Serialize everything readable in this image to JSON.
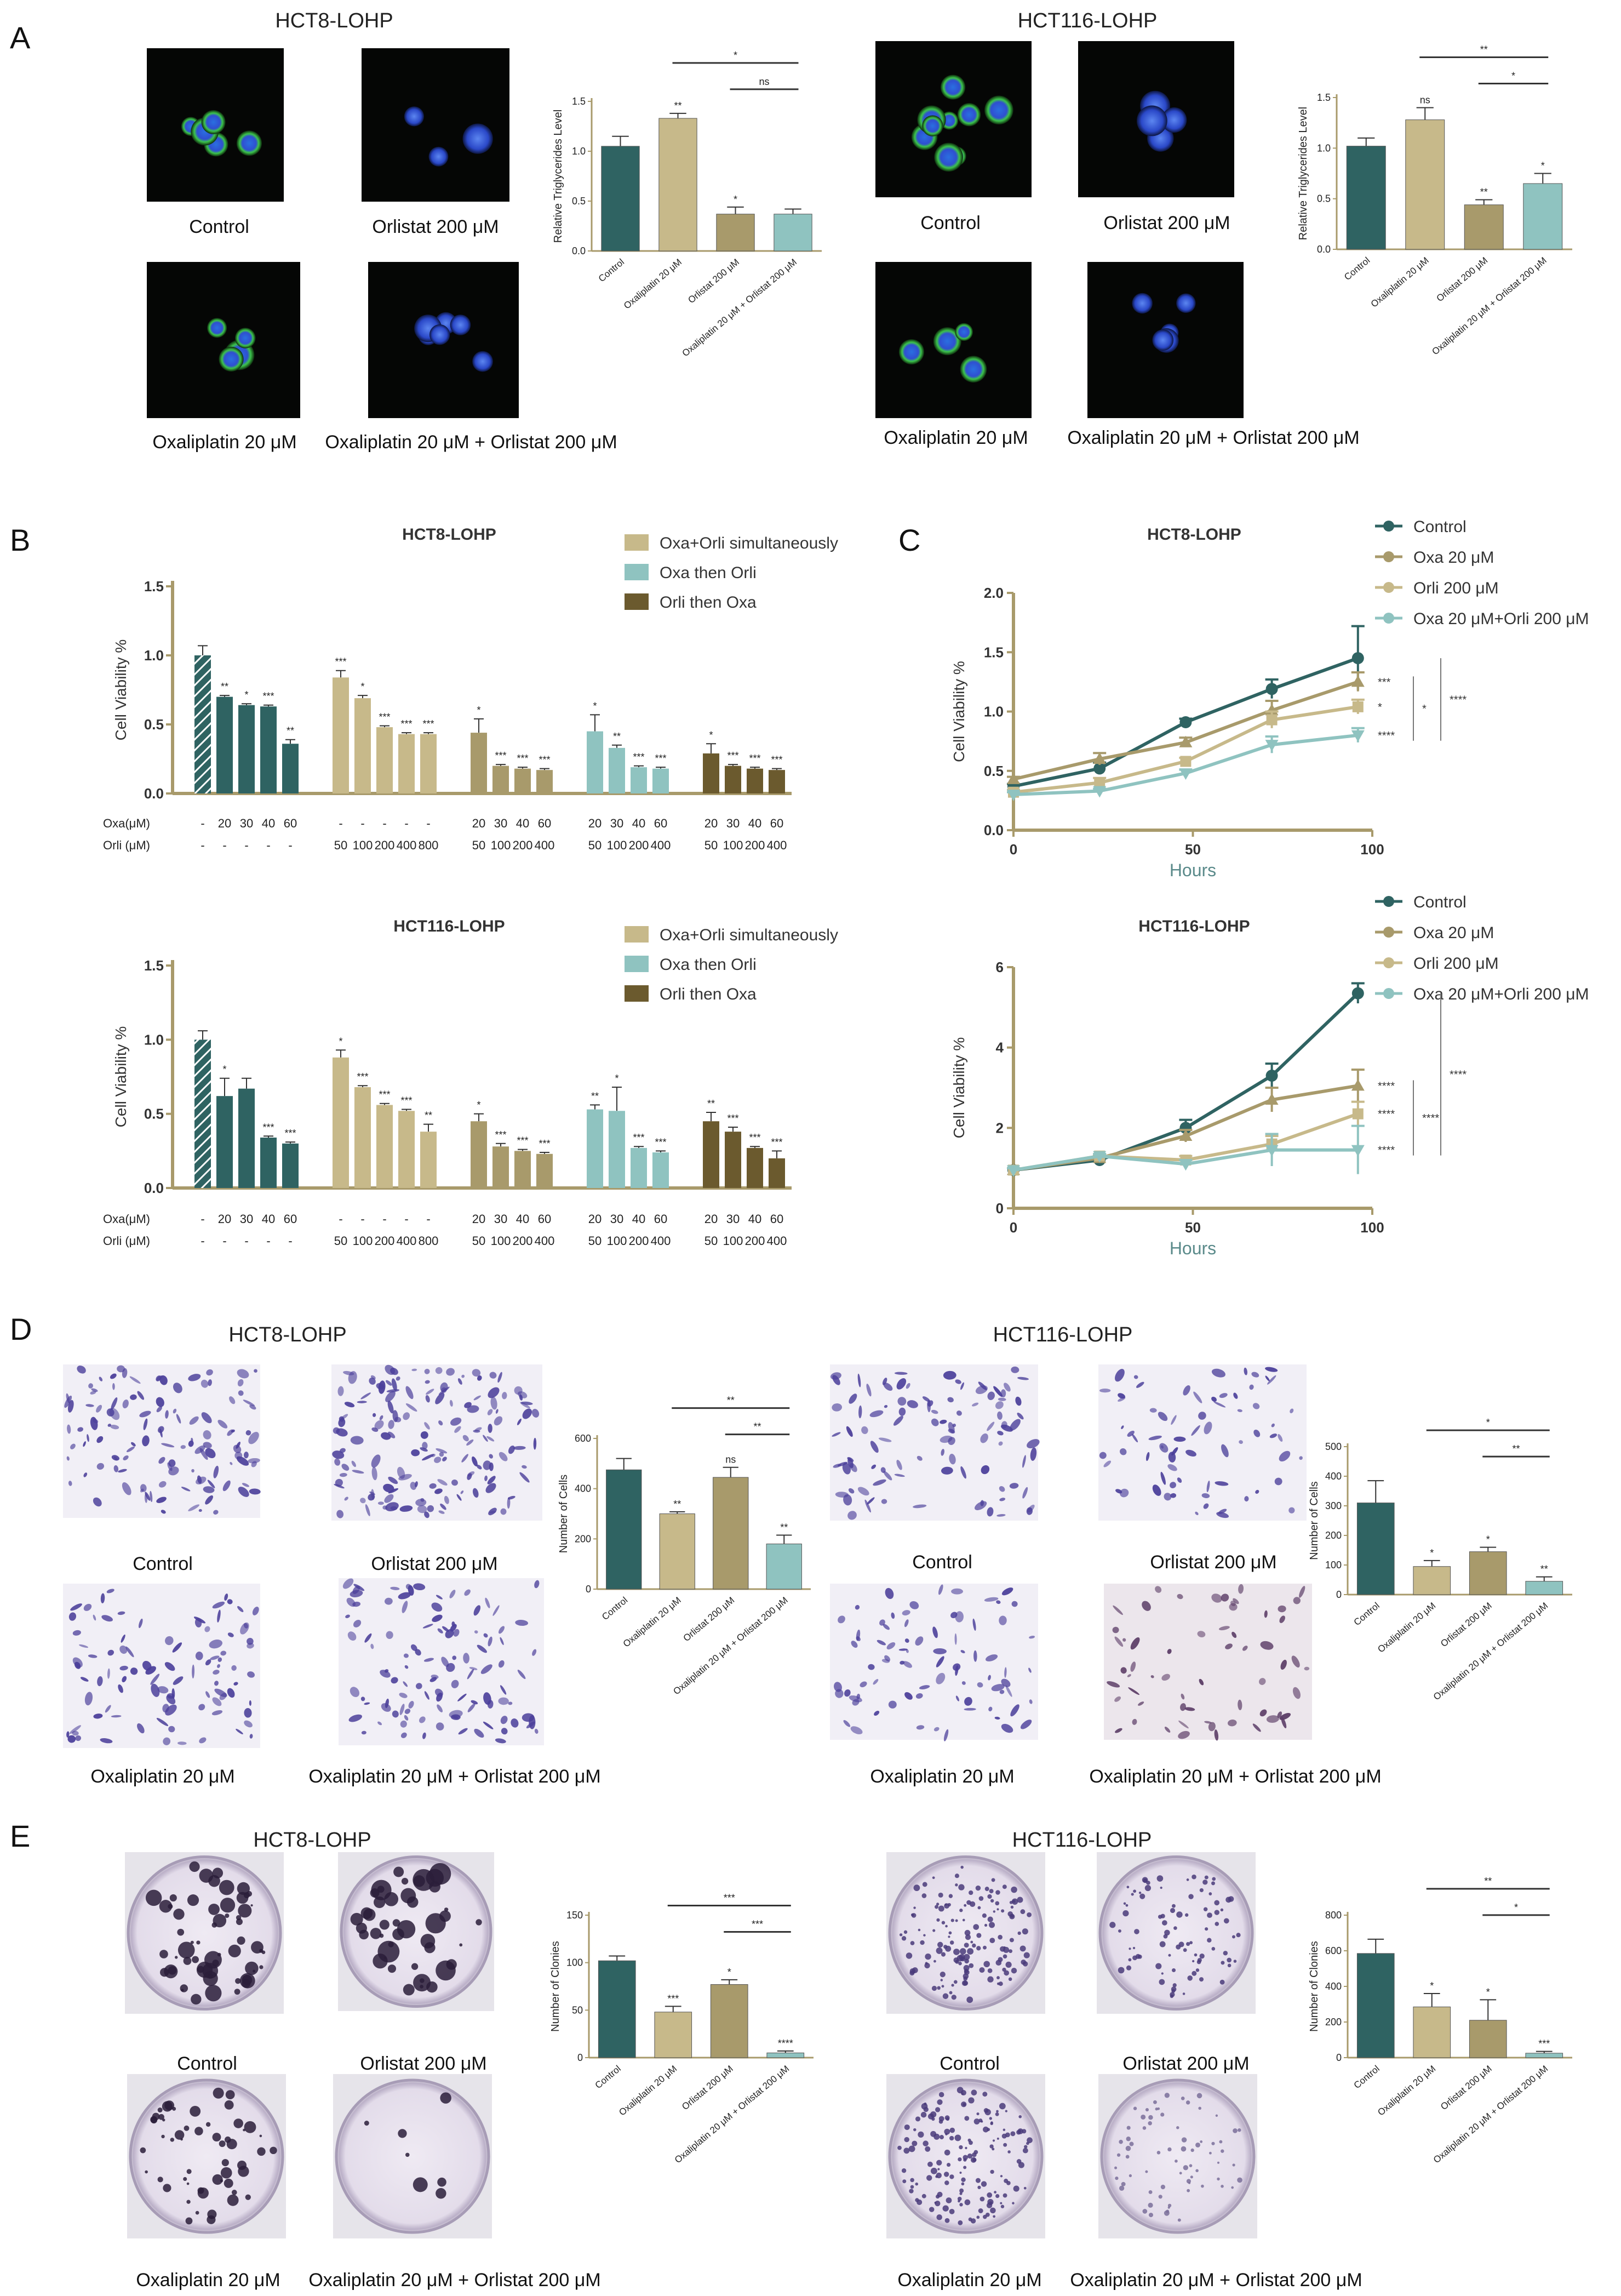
{
  "panels": {
    "A": {
      "label": "A",
      "left_title": "HCT8-LOHP",
      "right_title": "HCT116-LOHP",
      "captions_left": [
        "Control",
        "Orlistat 200 μM",
        "Oxaliplatin 20 μM",
        "Oxaliplatin 20 μM  + Orlistat 200 μM"
      ],
      "captions_right": [
        "Control",
        "Orlistat 200 μM",
        "Oxaliplatin 20 μM",
        "Oxaliplatin 20 μM  + Orlistat 200 μM"
      ]
    },
    "B": {
      "label": "B"
    },
    "C": {
      "label": "C",
      "xlabel": "Hours"
    },
    "D": {
      "label": "D",
      "left_title": "HCT8-LOHP",
      "right_title": "HCT116-LOHP",
      "captions_left": [
        "Control",
        "Orlistat 200 μM",
        "Oxaliplatin 20 μM",
        "Oxaliplatin 20 μM + Orlistat 200 μM"
      ],
      "captions_right": [
        "Control",
        "Orlistat 200 μM",
        "Oxaliplatin 20 μM",
        "Oxaliplatin 20 μM + Orlistat 200 μM"
      ]
    },
    "E": {
      "label": "E",
      "left_title": "HCT8-LOHP",
      "right_title": "HCT116-LOHP",
      "captions_left": [
        "Control",
        "Orlistat 200 μM",
        "Oxaliplatin 20 μM",
        "Oxaliplatin 20 μM + Orlistat 200 μM"
      ],
      "captions_right": [
        "Control",
        "Orlistat 200 μM",
        "Oxaliplatin 20 μM",
        "Oxaliplatin 20 μM + Orlistat 200 μM"
      ]
    }
  },
  "colors": {
    "teal_dark": "#2f6362",
    "khaki_light": "#c7b98a",
    "khaki": "#a89a6b",
    "teal_light": "#8fc3c0",
    "olive_dark": "#6b5a2e",
    "axis": "#a89a6b"
  },
  "bar4_categories": [
    "Control",
    "Oxaliplatin 20 μM",
    "Orlistat 200 μM",
    "Oxaliplatin 20 μM + Orlistat 200 μM"
  ],
  "chart_data": [
    {
      "id": "A_left",
      "type": "bar",
      "ylabel": "Relative Triglycerides Level",
      "ylim": [
        0,
        1.5
      ],
      "yticks": [
        "0.0",
        "0.5",
        "1.0",
        "1.5"
      ],
      "values": [
        1.05,
        1.33,
        0.37,
        0.37
      ],
      "errors": [
        0.1,
        0.05,
        0.07,
        0.05
      ],
      "sig": [
        "",
        "**",
        "*",
        ""
      ],
      "brackets": [
        {
          "from": 1,
          "to": 3,
          "text": "*"
        },
        {
          "from": 2,
          "to": 3,
          "text": "ns"
        }
      ]
    },
    {
      "id": "A_right",
      "type": "bar",
      "ylabel": "Relative Triglycerides Level",
      "ylim": [
        0,
        1.5
      ],
      "yticks": [
        "0.0",
        "0.5",
        "1.0",
        "1.5"
      ],
      "values": [
        1.02,
        1.28,
        0.44,
        0.65
      ],
      "errors": [
        0.08,
        0.12,
        0.05,
        0.1
      ],
      "sig": [
        "",
        "ns",
        "**",
        "*"
      ],
      "brackets": [
        {
          "from": 1,
          "to": 3,
          "text": "**"
        },
        {
          "from": 2,
          "to": 3,
          "text": "*"
        }
      ]
    },
    {
      "id": "D_left",
      "type": "bar",
      "ylabel": "Number of Cells",
      "ylim": [
        0,
        600
      ],
      "yticks": [
        "0",
        "200",
        "400",
        "600"
      ],
      "values": [
        475,
        300,
        445,
        180
      ],
      "errors": [
        45,
        8,
        40,
        35
      ],
      "sig": [
        "",
        "**",
        "ns",
        "**"
      ],
      "brackets": [
        {
          "from": 1,
          "to": 3,
          "text": "**"
        },
        {
          "from": 2,
          "to": 3,
          "text": "**"
        }
      ]
    },
    {
      "id": "D_right",
      "type": "bar",
      "ylabel": "Number of Cells",
      "ylim": [
        0,
        500
      ],
      "yticks": [
        "0",
        "100",
        "200",
        "300",
        "400",
        "500"
      ],
      "values": [
        310,
        95,
        145,
        45
      ],
      "errors": [
        75,
        20,
        15,
        15
      ],
      "sig": [
        "",
        "*",
        "*",
        "**"
      ],
      "brackets": [
        {
          "from": 1,
          "to": 3,
          "text": "*"
        },
        {
          "from": 2,
          "to": 3,
          "text": "**"
        }
      ]
    },
    {
      "id": "E_left",
      "type": "bar",
      "ylabel": "Number of Clonies",
      "ylim": [
        0,
        150
      ],
      "yticks": [
        "0",
        "50",
        "100",
        "150"
      ],
      "values": [
        102,
        48,
        77,
        5
      ],
      "errors": [
        5,
        6,
        5,
        2
      ],
      "sig": [
        "",
        "***",
        "*",
        "****"
      ],
      "brackets": [
        {
          "from": 1,
          "to": 3,
          "text": "***"
        },
        {
          "from": 2,
          "to": 3,
          "text": "***"
        }
      ]
    },
    {
      "id": "E_right",
      "type": "bar",
      "ylabel": "Number of Clonies",
      "ylim": [
        0,
        800
      ],
      "yticks": [
        "0",
        "200",
        "400",
        "600",
        "800"
      ],
      "values": [
        585,
        285,
        210,
        25
      ],
      "errors": [
        80,
        75,
        115,
        10
      ],
      "sig": [
        "",
        "*",
        "*",
        "***"
      ],
      "brackets": [
        {
          "from": 1,
          "to": 3,
          "text": "**"
        },
        {
          "from": 2,
          "to": 3,
          "text": "*"
        }
      ]
    },
    {
      "id": "B_top",
      "type": "bar",
      "title": "HCT8-LOHP",
      "ylabel": "Cell Viability %",
      "ylim": [
        0,
        1.5
      ],
      "yticks": [
        "0.0",
        "0.5",
        "1.0",
        "1.5"
      ],
      "legend": [
        "Oxa+Orli simultaneously",
        "Oxa then Orli",
        "Orli then Oxa"
      ],
      "row_labels": [
        "Oxa(μM)",
        "Orli (μM)"
      ],
      "groups": [
        {
          "color": "teal_dark",
          "values": [
            1.0,
            0.7,
            0.64,
            0.63,
            0.36
          ],
          "errors": [
            0.07,
            0.01,
            0.01,
            0.01,
            0.03
          ],
          "sig": [
            "",
            "**",
            "*",
            "***",
            "**"
          ],
          "oxa": [
            "-",
            "20",
            "30",
            "40",
            "60"
          ],
          "orli": [
            "-",
            "-",
            "-",
            "-",
            "-"
          ],
          "hatch_first": true
        },
        {
          "color": "khaki_light",
          "values": [
            0.84,
            0.69,
            0.48,
            0.43,
            0.43
          ],
          "errors": [
            0.05,
            0.02,
            0.01,
            0.01,
            0.01
          ],
          "sig": [
            "***",
            "*",
            "***",
            "***",
            "***"
          ],
          "oxa": [
            "-",
            "-",
            "-",
            "-",
            "-"
          ],
          "orli": [
            "50",
            "100",
            "200",
            "400",
            "800"
          ]
        },
        {
          "color": "khaki",
          "values": [
            0.44,
            0.2,
            0.18,
            0.17
          ],
          "errors": [
            0.1,
            0.01,
            0.01,
            0.01
          ],
          "sig": [
            "*",
            "***",
            "***",
            "***"
          ],
          "oxa": [
            "20",
            "30",
            "40",
            "60"
          ],
          "orli": [
            "50",
            "100",
            "200",
            "400"
          ]
        },
        {
          "color": "teal_light",
          "values": [
            0.45,
            0.33,
            0.19,
            0.18
          ],
          "errors": [
            0.12,
            0.02,
            0.01,
            0.01
          ],
          "sig": [
            "*",
            "**",
            "***",
            "***"
          ],
          "oxa": [
            "20",
            "30",
            "40",
            "60"
          ],
          "orli": [
            "50",
            "100",
            "200",
            "400"
          ]
        },
        {
          "color": "olive_dark",
          "values": [
            0.29,
            0.2,
            0.18,
            0.17
          ],
          "errors": [
            0.07,
            0.01,
            0.01,
            0.01
          ],
          "sig": [
            "*",
            "***",
            "***",
            "***"
          ],
          "oxa": [
            "20",
            "30",
            "40",
            "60"
          ],
          "orli": [
            "50",
            "100",
            "200",
            "400"
          ]
        }
      ]
    },
    {
      "id": "B_bottom",
      "type": "bar",
      "title": "HCT116-LOHP",
      "ylabel": "Cell Viability %",
      "ylim": [
        0,
        1.5
      ],
      "yticks": [
        "0.0",
        "0.5",
        "1.0",
        "1.5"
      ],
      "legend": [
        "Oxa+Orli simultaneously",
        "Oxa then Orli",
        "Orli then Oxa"
      ],
      "row_labels": [
        "Oxa(μM)",
        "Orli (μM)"
      ],
      "groups": [
        {
          "color": "teal_dark",
          "values": [
            1.0,
            0.62,
            0.67,
            0.34,
            0.3
          ],
          "errors": [
            0.06,
            0.12,
            0.07,
            0.01,
            0.01
          ],
          "sig": [
            "",
            "*",
            "",
            "***",
            "***"
          ],
          "oxa": [
            "-",
            "20",
            "30",
            "40",
            "60"
          ],
          "orli": [
            "-",
            "-",
            "-",
            "-",
            "-"
          ],
          "hatch_first": true
        },
        {
          "color": "khaki_light",
          "values": [
            0.88,
            0.68,
            0.56,
            0.52,
            0.38
          ],
          "errors": [
            0.05,
            0.01,
            0.01,
            0.01,
            0.05
          ],
          "sig": [
            "*",
            "***",
            "***",
            "***",
            "**"
          ],
          "oxa": [
            "-",
            "-",
            "-",
            "-",
            "-"
          ],
          "orli": [
            "50",
            "100",
            "200",
            "400",
            "800"
          ]
        },
        {
          "color": "khaki",
          "values": [
            0.45,
            0.28,
            0.25,
            0.23
          ],
          "errors": [
            0.05,
            0.02,
            0.01,
            0.01
          ],
          "sig": [
            "*",
            "***",
            "***",
            "***"
          ],
          "oxa": [
            "20",
            "30",
            "40",
            "60"
          ],
          "orli": [
            "50",
            "100",
            "200",
            "400"
          ]
        },
        {
          "color": "teal_light",
          "values": [
            0.53,
            0.52,
            0.27,
            0.24
          ],
          "errors": [
            0.03,
            0.16,
            0.01,
            0.01
          ],
          "sig": [
            "**",
            "*",
            "***",
            "***"
          ],
          "oxa": [
            "20",
            "30",
            "40",
            "60"
          ],
          "orli": [
            "50",
            "100",
            "200",
            "400"
          ]
        },
        {
          "color": "olive_dark",
          "values": [
            0.45,
            0.38,
            0.27,
            0.2
          ],
          "errors": [
            0.06,
            0.03,
            0.01,
            0.05
          ],
          "sig": [
            "**",
            "***",
            "***",
            "***"
          ],
          "oxa": [
            "20",
            "30",
            "40",
            "60"
          ],
          "orli": [
            "50",
            "100",
            "200",
            "400"
          ]
        }
      ]
    },
    {
      "id": "C_top",
      "type": "line",
      "title": "HCT8-LOHP",
      "xlabel": "Hours",
      "ylabel": "Cell Viability %",
      "xlim": [
        0,
        100
      ],
      "ylim": [
        0,
        2.0
      ],
      "xticks": [
        "0",
        "50",
        "100"
      ],
      "yticks": [
        "0.0",
        "0.5",
        "1.0",
        "1.5",
        "2.0"
      ],
      "x": [
        0,
        24,
        48,
        72,
        96
      ],
      "series": [
        {
          "name": "Control",
          "color": "teal_dark",
          "marker": "circle",
          "values": [
            0.37,
            0.52,
            0.91,
            1.19,
            1.45
          ],
          "errors": [
            0.02,
            0.05,
            0.03,
            0.08,
            0.27
          ]
        },
        {
          "name": "Oxa 20 μM",
          "color": "khaki",
          "marker": "triangle",
          "values": [
            0.43,
            0.6,
            0.74,
            1.01,
            1.25
          ],
          "errors": [
            0.02,
            0.05,
            0.04,
            0.08,
            0.08
          ]
        },
        {
          "name": "Orli 200 μM",
          "color": "khaki_light",
          "marker": "square",
          "values": [
            0.32,
            0.4,
            0.58,
            0.93,
            1.04
          ],
          "errors": [
            0.02,
            0.04,
            0.03,
            0.07,
            0.06
          ]
        },
        {
          "name": "Oxa 20 μM+Orli 200 μM",
          "color": "teal_light",
          "marker": "triangle-down",
          "values": [
            0.3,
            0.33,
            0.48,
            0.72,
            0.8
          ],
          "errors": [
            0.02,
            0.02,
            0.03,
            0.07,
            0.06
          ]
        }
      ],
      "end_sig": [
        "***",
        "*",
        "****"
      ],
      "brackets": [
        {
          "text": "*"
        },
        {
          "text": "****"
        }
      ]
    },
    {
      "id": "C_bottom",
      "type": "line",
      "title": "HCT116-LOHP",
      "xlabel": "Hours",
      "ylabel": "Cell Viability %",
      "xlim": [
        0,
        100
      ],
      "ylim": [
        0,
        6
      ],
      "xticks": [
        "0",
        "50",
        "100"
      ],
      "yticks": [
        "0",
        "2",
        "4",
        "6"
      ],
      "x": [
        0,
        24,
        48,
        72,
        96
      ],
      "series": [
        {
          "name": "Control",
          "color": "teal_dark",
          "marker": "circle",
          "values": [
            0.95,
            1.2,
            2.0,
            3.3,
            5.35
          ],
          "errors": [
            0.05,
            0.05,
            0.2,
            0.3,
            0.25
          ]
        },
        {
          "name": "Oxa 20 μM",
          "color": "khaki",
          "marker": "triangle",
          "values": [
            0.95,
            1.25,
            1.8,
            2.7,
            3.05
          ],
          "errors": [
            0.05,
            0.05,
            0.15,
            0.3,
            0.4
          ]
        },
        {
          "name": "Orli 200 μM",
          "color": "khaki_light",
          "marker": "square",
          "values": [
            0.95,
            1.3,
            1.2,
            1.6,
            2.35
          ],
          "errors": [
            0.05,
            0.05,
            0.1,
            0.2,
            0.3
          ]
        },
        {
          "name": "Oxa 20 μM+Orli 200 μM",
          "color": "teal_light",
          "marker": "triangle-down",
          "values": [
            0.95,
            1.3,
            1.1,
            1.45,
            1.45
          ],
          "errors": [
            0.05,
            0.05,
            0.1,
            0.4,
            0.6
          ]
        }
      ],
      "end_sig": [
        "****",
        "****",
        "****"
      ],
      "brackets": [
        {
          "text": "****"
        },
        {
          "text": "****"
        }
      ]
    }
  ]
}
